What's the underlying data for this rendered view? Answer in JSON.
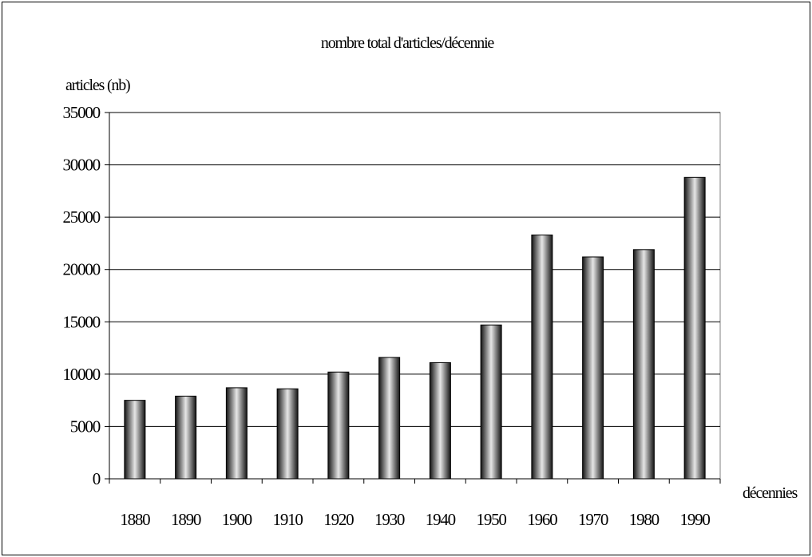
{
  "chart_data": {
    "type": "bar",
    "title": "nombre total d'articles/décennie",
    "ylabel": "articles (nb)",
    "xlabel": "décennies",
    "categories": [
      "1880",
      "1890",
      "1900",
      "1910",
      "1920",
      "1930",
      "1940",
      "1950",
      "1960",
      "1970",
      "1980",
      "1990"
    ],
    "values": [
      7500,
      7900,
      8700,
      8600,
      10200,
      11600,
      11100,
      14700,
      23300,
      21200,
      21900,
      28800
    ],
    "ylim": [
      0,
      35000
    ],
    "yticks": [
      "0",
      "5000",
      "10000",
      "15000",
      "20000",
      "25000",
      "30000",
      "35000"
    ],
    "grid": true,
    "legend": "none",
    "bar_gradient": {
      "edge": "#141414",
      "center": "#e6e6e6"
    }
  }
}
